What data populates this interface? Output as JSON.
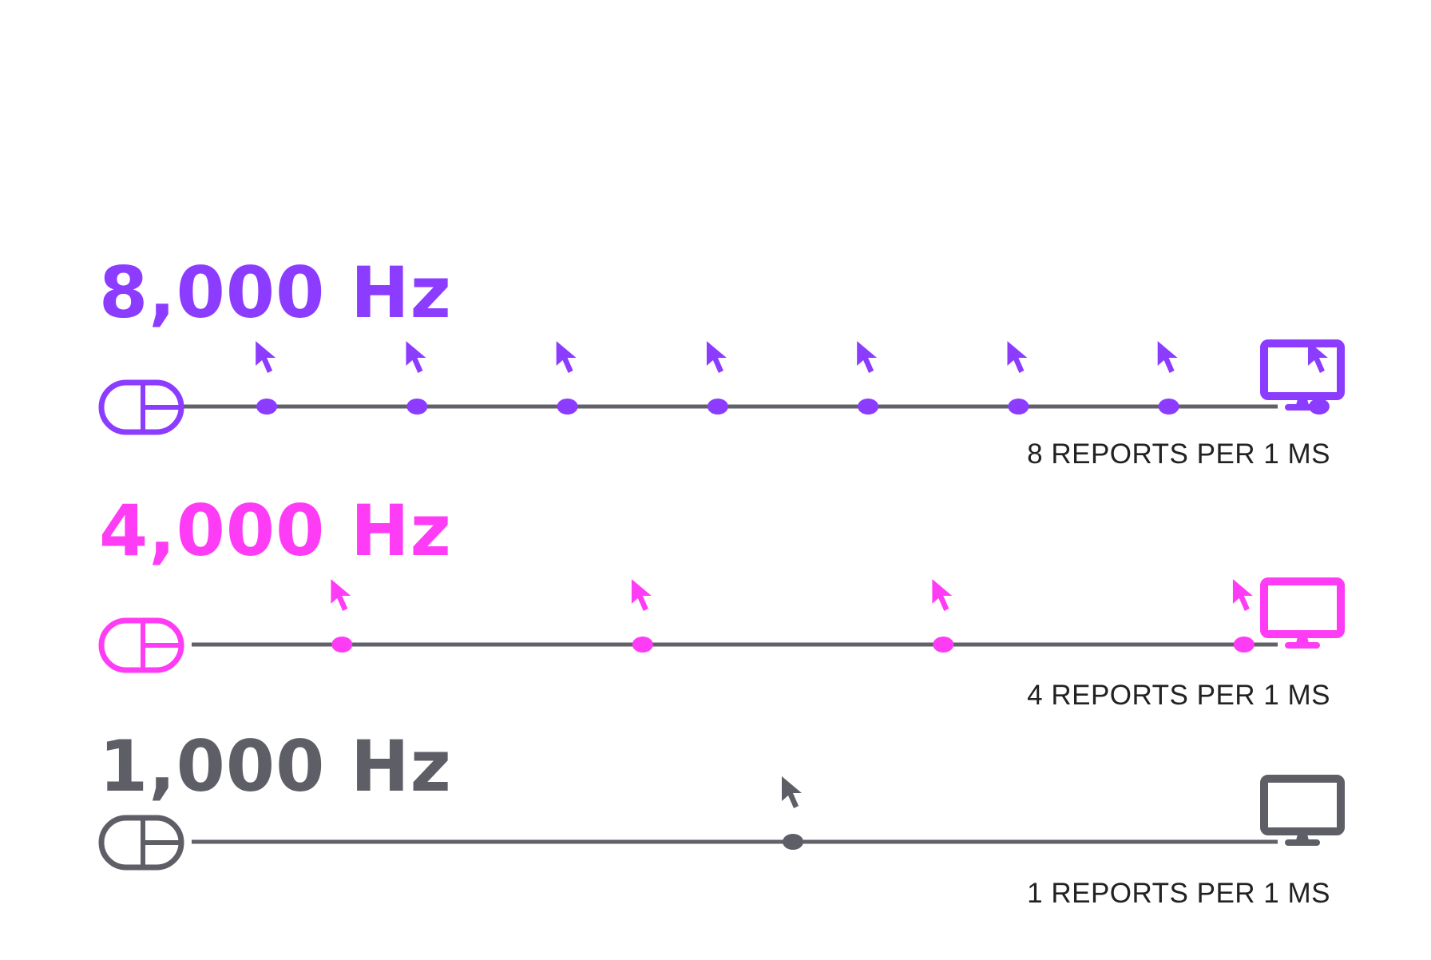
{
  "rows": [
    {
      "label": "8,000 Hz",
      "reports": 8,
      "caption": "8 REPORTS PER 1 MS",
      "color": "#8C3CFF"
    },
    {
      "label": "4,000 Hz",
      "reports": 4,
      "caption": "4 REPORTS PER 1 MS",
      "color": "#FF3CF5"
    },
    {
      "label": "1,000 Hz",
      "reports": 1,
      "caption": "1 REPORTS PER 1 MS",
      "color": "#5E5E66"
    }
  ],
  "colors": {
    "line": "#616168",
    "caption_text": "#222222"
  },
  "icons": {
    "source": "mouse-icon",
    "report": "cursor-icon",
    "destination": "monitor-icon"
  }
}
